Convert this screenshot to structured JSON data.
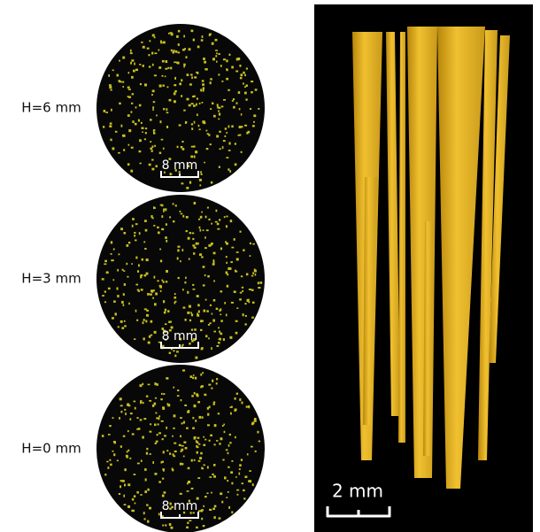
{
  "cross_sections": [
    {
      "label": "H=6 mm",
      "scale_bar": "8 mm"
    },
    {
      "label": "H=3 mm",
      "scale_bar": "8 mm"
    },
    {
      "label": "H=0 mm",
      "scale_bar": "8 mm"
    }
  ],
  "volume": {
    "scale_bar": "2 mm"
  }
}
